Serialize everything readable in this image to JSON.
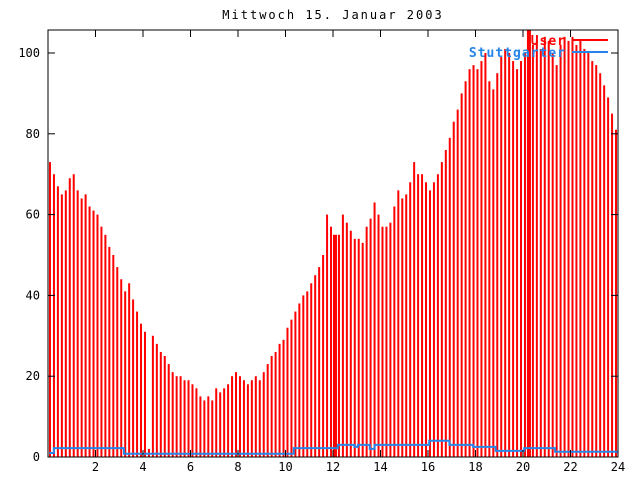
{
  "title": "Mittwoch 15. Januar 2003",
  "chart_data": {
    "type": "bar",
    "title": "Mittwoch 15. Januar 2003",
    "xlabel": "",
    "ylabel": "",
    "xlim": [
      0,
      24
    ],
    "ylim": [
      0,
      106
    ],
    "x_tick_labels": [
      "2",
      "4",
      "6",
      "8",
      "10",
      "12",
      "14",
      "16",
      "18",
      "20",
      "22",
      "24"
    ],
    "x_tick_values": [
      2,
      4,
      6,
      8,
      10,
      12,
      14,
      16,
      18,
      20,
      22,
      24
    ],
    "y_tick_labels": [
      "0",
      "20",
      "40",
      "60",
      "80",
      "100"
    ],
    "y_tick_values": [
      0,
      20,
      40,
      60,
      80,
      100
    ],
    "grid": false,
    "legend_position": "top-right-inside",
    "series": [
      {
        "name": "User",
        "type": "impulses",
        "color": "#ff0000",
        "interval_hours": 0.1667,
        "values": [
          73,
          70,
          67,
          65,
          66,
          69,
          70,
          66,
          64,
          65,
          62,
          61,
          60,
          57,
          55,
          52,
          50,
          47,
          44,
          41,
          43,
          39,
          36,
          33,
          31,
          2,
          30,
          28,
          26,
          25,
          23,
          21,
          20,
          20,
          19,
          19,
          18,
          17,
          15,
          14,
          15,
          14,
          17,
          16,
          17,
          18,
          20,
          21,
          20,
          19,
          18,
          19,
          20,
          19,
          21,
          23,
          25,
          26,
          28,
          29,
          32,
          34,
          36,
          38,
          40,
          41,
          43,
          45,
          47,
          50,
          60,
          57,
          55,
          55,
          60,
          58,
          56,
          54,
          54,
          53,
          57,
          59,
          63,
          60,
          57,
          57,
          58,
          62,
          66,
          64,
          65,
          68,
          73,
          70,
          70,
          68,
          66,
          68,
          70,
          73,
          76,
          79,
          83,
          86,
          90,
          93,
          96,
          97,
          96,
          98,
          100,
          93,
          91,
          95,
          99,
          101,
          100,
          98,
          96,
          98,
          100,
          106,
          102,
          103,
          101,
          104,
          103,
          100,
          97,
          102,
          104,
          103,
          104,
          102,
          103,
          101,
          100,
          98,
          97,
          95,
          92,
          89,
          85,
          81
        ],
        "wide_indices": [
          72,
          121
        ],
        "dropout_index": 25
      },
      {
        "name": "Stuttgarter",
        "type": "steps",
        "color": "#2585e8",
        "step_points": [
          [
            0.05,
            1
          ],
          [
            0.25,
            2.2
          ],
          [
            3.2,
            0.8
          ],
          [
            10.35,
            2.2
          ],
          [
            12.2,
            3
          ],
          [
            12.9,
            2.5
          ],
          [
            13.05,
            3
          ],
          [
            13.55,
            2
          ],
          [
            13.75,
            3
          ],
          [
            16.05,
            4
          ],
          [
            16.9,
            3
          ],
          [
            17.9,
            2.5
          ],
          [
            18.85,
            1.5
          ],
          [
            20.05,
            2.2
          ],
          [
            21.35,
            1.3
          ]
        ],
        "end_hour": 24
      }
    ]
  },
  "colors": {
    "background": "#ffffff",
    "axis": "#000000",
    "bars": "#ff0000",
    "line": "#2585e8",
    "text": "#000000"
  }
}
